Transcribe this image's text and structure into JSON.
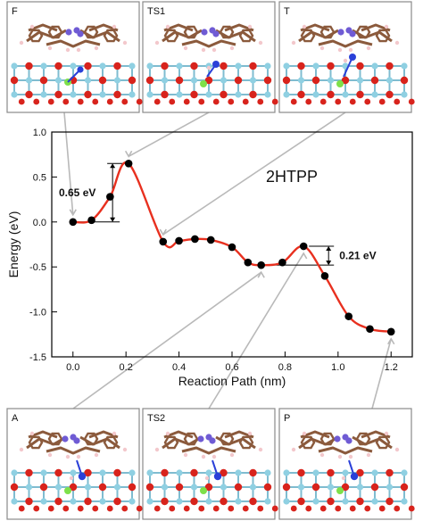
{
  "chart_data": {
    "type": "line",
    "title": "2HTPP",
    "xlabel": "Reaction Path (nm)",
    "ylabel": "Energy (eV)",
    "xlim": [
      -0.08,
      1.28
    ],
    "ylim": [
      -1.5,
      1.0
    ],
    "xticks": [
      0.0,
      0.2,
      0.4,
      0.6,
      0.8,
      1.0,
      1.2
    ],
    "xtick_labels": [
      "0.0",
      "0.2",
      "0.4",
      "0.6",
      "0.8",
      "1.0",
      "1.2"
    ],
    "yticks": [
      1.0,
      0.5,
      0.0,
      -0.5,
      -1.0,
      -1.5
    ],
    "ytick_labels": [
      "1.0",
      "0.5",
      "0.0",
      "-0.5",
      "-1.0",
      "-1.5"
    ],
    "grid": false,
    "line_color": "#e8301f",
    "marker_color": "#000000",
    "series": [
      {
        "x": [
          0.0,
          0.07,
          0.14,
          0.21,
          0.34,
          0.4,
          0.46,
          0.52,
          0.6,
          0.66,
          0.71,
          0.79,
          0.87,
          0.95,
          1.04,
          1.12,
          1.2
        ],
        "y": [
          0.0,
          0.02,
          0.28,
          0.65,
          -0.22,
          -0.21,
          -0.19,
          -0.2,
          -0.28,
          -0.45,
          -0.48,
          -0.45,
          -0.27,
          -0.6,
          -1.05,
          -1.19,
          -1.22
        ]
      }
    ],
    "annotations": [
      {
        "text": "0.65 eV",
        "x_from": 0.0,
        "x_to": 0.21,
        "y_low": 0.0,
        "y_high": 0.65
      },
      {
        "text": "0.21 eV",
        "x_from": 0.71,
        "x_to": 0.87,
        "y_low": -0.48,
        "y_high": -0.27
      }
    ]
  },
  "panels": {
    "top": [
      {
        "label": "F",
        "points_to_x": 0.0
      },
      {
        "label": "TS1",
        "points_to_x": 0.21
      },
      {
        "label": "T",
        "points_to_x": 0.34
      }
    ],
    "bottom": [
      {
        "label": "A",
        "points_to_x": 0.71
      },
      {
        "label": "TS2",
        "points_to_x": 0.87
      },
      {
        "label": "P",
        "points_to_x": 1.2
      }
    ]
  },
  "colors": {
    "carbon": "#8b5a3c",
    "nitrogen": "#6f5bd4",
    "blue_n": "#2a40d8",
    "hydrogen": "#f3c8cc",
    "oxygen": "#d8231c",
    "titanium": "#8fd0e2",
    "green": "#7ee04a",
    "frame": "#8a8a8a",
    "connector": "#b9b9b9"
  }
}
